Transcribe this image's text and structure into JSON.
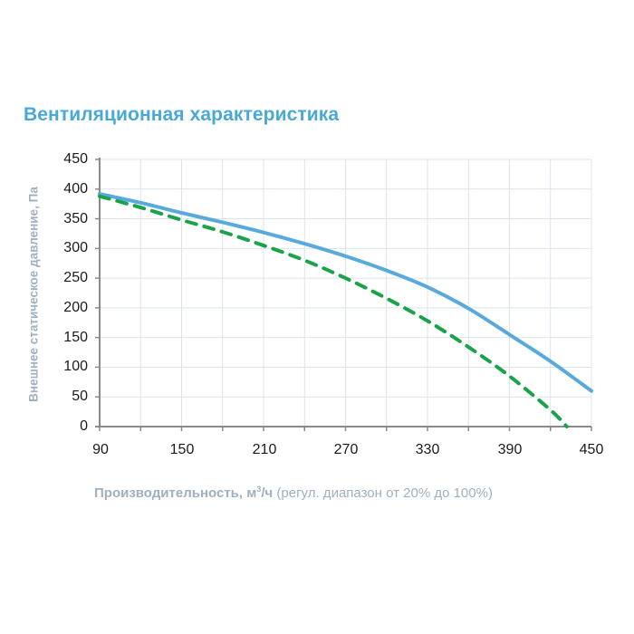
{
  "title": "Вентиляционная характеристика",
  "y_axis": {
    "label": "Внешнее статическое давление, Па",
    "ticks": [
      "450",
      "400",
      "350",
      "300",
      "250",
      "200",
      "150",
      "100",
      "50",
      "0"
    ]
  },
  "x_axis": {
    "label_bold": "Производительность, м",
    "label_sup": "3",
    "label_bold_tail": "/ч",
    "label_note": " (регул. диапазон от 20% до 100%)",
    "ticks": [
      "90",
      "150",
      "210",
      "270",
      "330",
      "390",
      "450"
    ]
  },
  "colors": {
    "title": "#4aa8d8",
    "axis_label": "#9fb0c0",
    "series_solid": "#58a9dc",
    "series_dashed": "#1aa34a",
    "grid": "#dbe4ee",
    "axis": "#8a8a8a"
  },
  "chart_data": {
    "type": "line",
    "title": "Вентиляционная характеристика",
    "xlabel": "Производительность, м³/ч (регул. диапазон от 20% до 100%)",
    "ylabel": "Внешнее статическое давление, Па",
    "xlim": [
      90,
      450
    ],
    "ylim": [
      0,
      450
    ],
    "x_ticks": [
      90,
      150,
      210,
      270,
      330,
      390,
      450
    ],
    "x_minor_grid_step": 30,
    "y_ticks": [
      0,
      50,
      100,
      150,
      200,
      250,
      300,
      350,
      400,
      450
    ],
    "grid": true,
    "legend": null,
    "series": [
      {
        "name": "solid-blue",
        "style": "solid",
        "color": "#58a9dc",
        "x": [
          90,
          120,
          150,
          180,
          210,
          240,
          270,
          300,
          330,
          360,
          390,
          420,
          450
        ],
        "y": [
          392,
          377,
          360,
          344,
          327,
          308,
          287,
          263,
          235,
          199,
          155,
          110,
          60
        ]
      },
      {
        "name": "dashed-green",
        "style": "dashed",
        "color": "#1aa34a",
        "x": [
          90,
          120,
          150,
          180,
          210,
          240,
          270,
          300,
          330,
          360,
          390,
          420,
          432
        ],
        "y": [
          388,
          369,
          348,
          328,
          305,
          280,
          250,
          216,
          178,
          134,
          85,
          28,
          0
        ]
      }
    ]
  }
}
